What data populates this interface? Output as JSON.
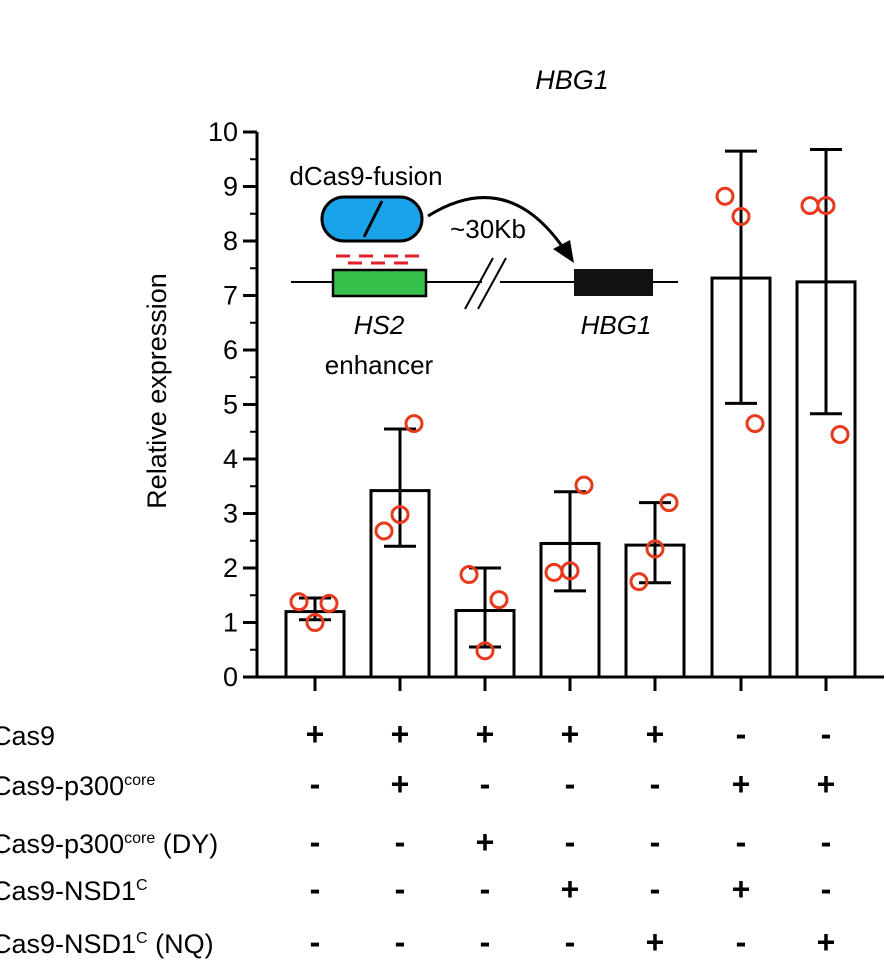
{
  "chart_data": {
    "type": "bar",
    "title": "HBG1",
    "ylabel": "Relative expression",
    "xlabel": "",
    "ylim": [
      0,
      10
    ],
    "yticks": [
      0,
      1,
      2,
      3,
      4,
      5,
      6,
      7,
      8,
      9,
      10
    ],
    "grid": false,
    "legend": "none",
    "colors": {
      "bar_fill": "#ffffff",
      "bar_edge": "#000000",
      "points": "#e8391d",
      "inset_dcas9": "#1aa3e8",
      "inset_hs2": "#34c04a",
      "inset_hbg1": "#111111",
      "inset_guides": "#e0202a"
    },
    "bars": [
      {
        "value": 1.2,
        "err_low": 1.05,
        "err_high": 1.45,
        "points": [
          1.38,
          1.0,
          1.35
        ]
      },
      {
        "value": 3.42,
        "err_low": 2.4,
        "err_high": 4.55,
        "points": [
          2.68,
          2.98,
          4.65
        ]
      },
      {
        "value": 1.22,
        "err_low": 0.55,
        "err_high": 2.0,
        "points": [
          1.88,
          0.48,
          1.42
        ]
      },
      {
        "value": 2.45,
        "err_low": 1.58,
        "err_high": 3.4,
        "points": [
          1.92,
          1.95,
          3.52
        ]
      },
      {
        "value": 2.42,
        "err_low": 1.73,
        "err_high": 3.2,
        "points": [
          1.75,
          2.35,
          3.2
        ]
      },
      {
        "value": 7.32,
        "err_low": 5.02,
        "err_high": 9.65,
        "points": [
          8.82,
          8.45,
          4.65
        ]
      },
      {
        "value": 7.25,
        "err_low": 4.83,
        "err_high": 9.68,
        "points": [
          8.65,
          8.65,
          4.45
        ]
      }
    ],
    "conditions": [
      {
        "label": "Cas9",
        "sup": "",
        "suffix": "",
        "signs": [
          "+",
          "+",
          "+",
          "+",
          "+",
          "-",
          "-"
        ]
      },
      {
        "label": "Cas9-p300",
        "sup": "core",
        "suffix": "",
        "signs": [
          "-",
          "+",
          "-",
          "-",
          "-",
          "+",
          "+"
        ]
      },
      {
        "label": "Cas9-p300",
        "sup": "core",
        "suffix": " (DY)",
        "signs": [
          "-",
          "-",
          "+",
          "-",
          "-",
          "-",
          "-"
        ]
      },
      {
        "label": "Cas9-NSD1",
        "sup": "C",
        "suffix": "",
        "signs": [
          "-",
          "-",
          "-",
          "+",
          "-",
          "+",
          "-"
        ]
      },
      {
        "label": "Cas9-NSD1",
        "sup": "C",
        "suffix": " (NQ)",
        "signs": [
          "-",
          "-",
          "-",
          "-",
          "+",
          "-",
          "+"
        ]
      }
    ],
    "inset": {
      "fusion_label": "dCas9-fusion",
      "distance_label": "~30Kb",
      "enhancer_name": "HS2",
      "enhancer_label": "enhancer",
      "gene_label": "HBG1"
    }
  }
}
